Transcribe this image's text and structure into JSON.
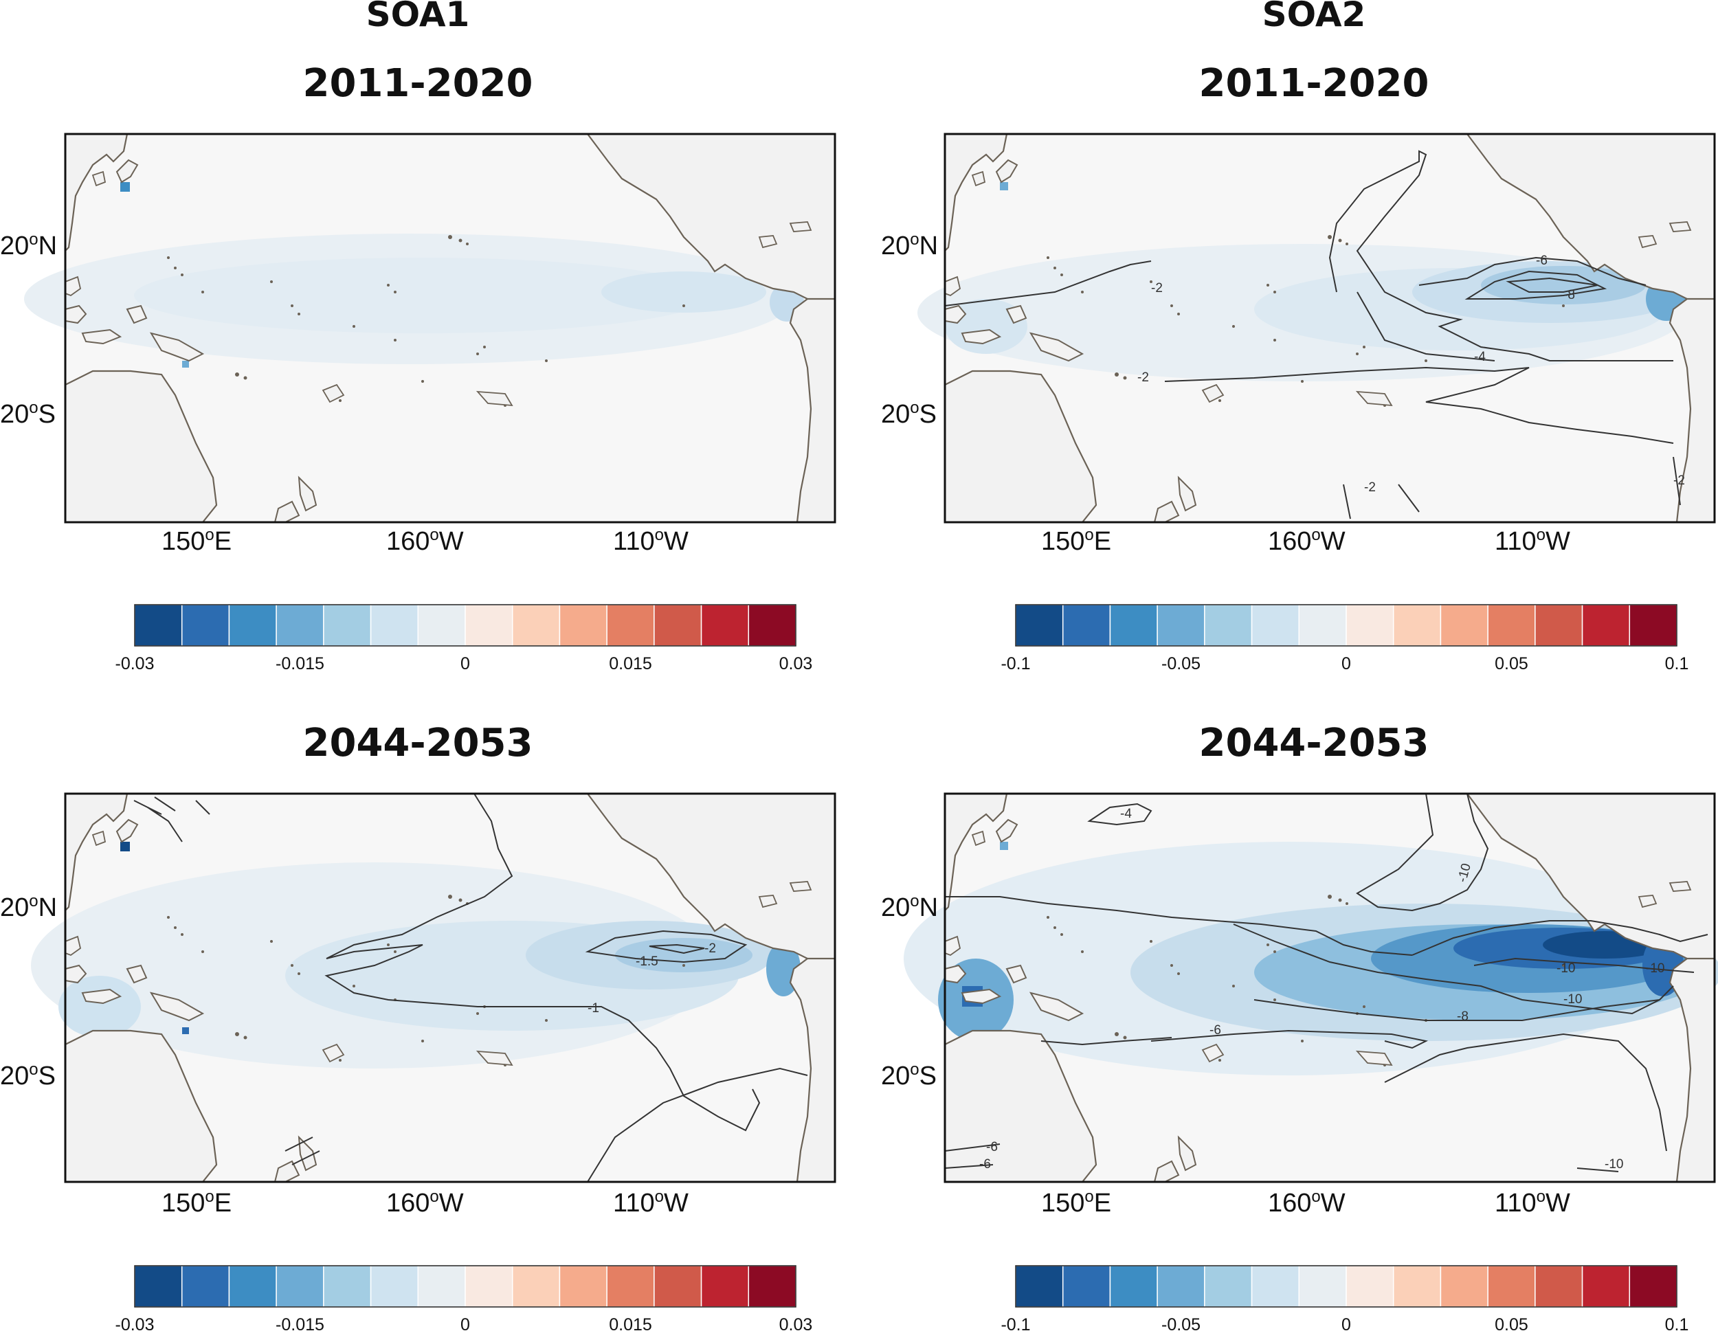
{
  "columns": [
    {
      "title": "SOA1"
    },
    {
      "title": "SOA2"
    }
  ],
  "panels": [
    {
      "title": "2011-2020",
      "column": "SOA1"
    },
    {
      "title": "2011-2020",
      "column": "SOA2"
    },
    {
      "title": "2044-2053",
      "column": "SOA1"
    },
    {
      "title": "2044-2053",
      "column": "SOA2"
    }
  ],
  "axes": {
    "lat": [
      "20",
      "20"
    ],
    "lat_hemi": [
      "N",
      "S"
    ],
    "lon": [
      "150",
      "160",
      "110"
    ],
    "lon_hemi": [
      "E",
      "W",
      "W"
    ],
    "degree_symbol": "o"
  },
  "colorbars": {
    "soa1": {
      "ticks": [
        "-0.03",
        "-0.015",
        "0",
        "0.015",
        "0.03"
      ],
      "min": -0.03,
      "max": 0.03
    },
    "soa2": {
      "ticks": [
        "-0.1",
        "-0.05",
        "0",
        "0.05",
        "0.1"
      ],
      "min": -0.1,
      "max": 0.1
    },
    "colors": [
      "#134b87",
      "#2c6cb1",
      "#3d8dc3",
      "#6dabd4",
      "#a3cde3",
      "#cfe3f0",
      "#e8eef2",
      "#f9e9e1",
      "#fbd0b8",
      "#f5ab8c",
      "#e47f63",
      "#d05a4a",
      "#bd2330",
      "#8c0a24"
    ]
  },
  "contour_labels": {
    "p1": [],
    "p2": [
      "-6",
      "-8",
      "-2",
      "-4",
      "-2",
      "-2",
      "-2"
    ],
    "p3": [
      "-2",
      "-1.5",
      "-1"
    ],
    "p4": [
      "-4",
      "-10",
      "-10",
      "-10",
      "-10",
      "-8",
      "-6",
      "-6",
      "-6",
      "-10"
    ]
  },
  "colors": {
    "land": "#f2f2f2",
    "ocean": "#f7f7f7",
    "coast": "#6b6256",
    "contour": "#333333"
  }
}
